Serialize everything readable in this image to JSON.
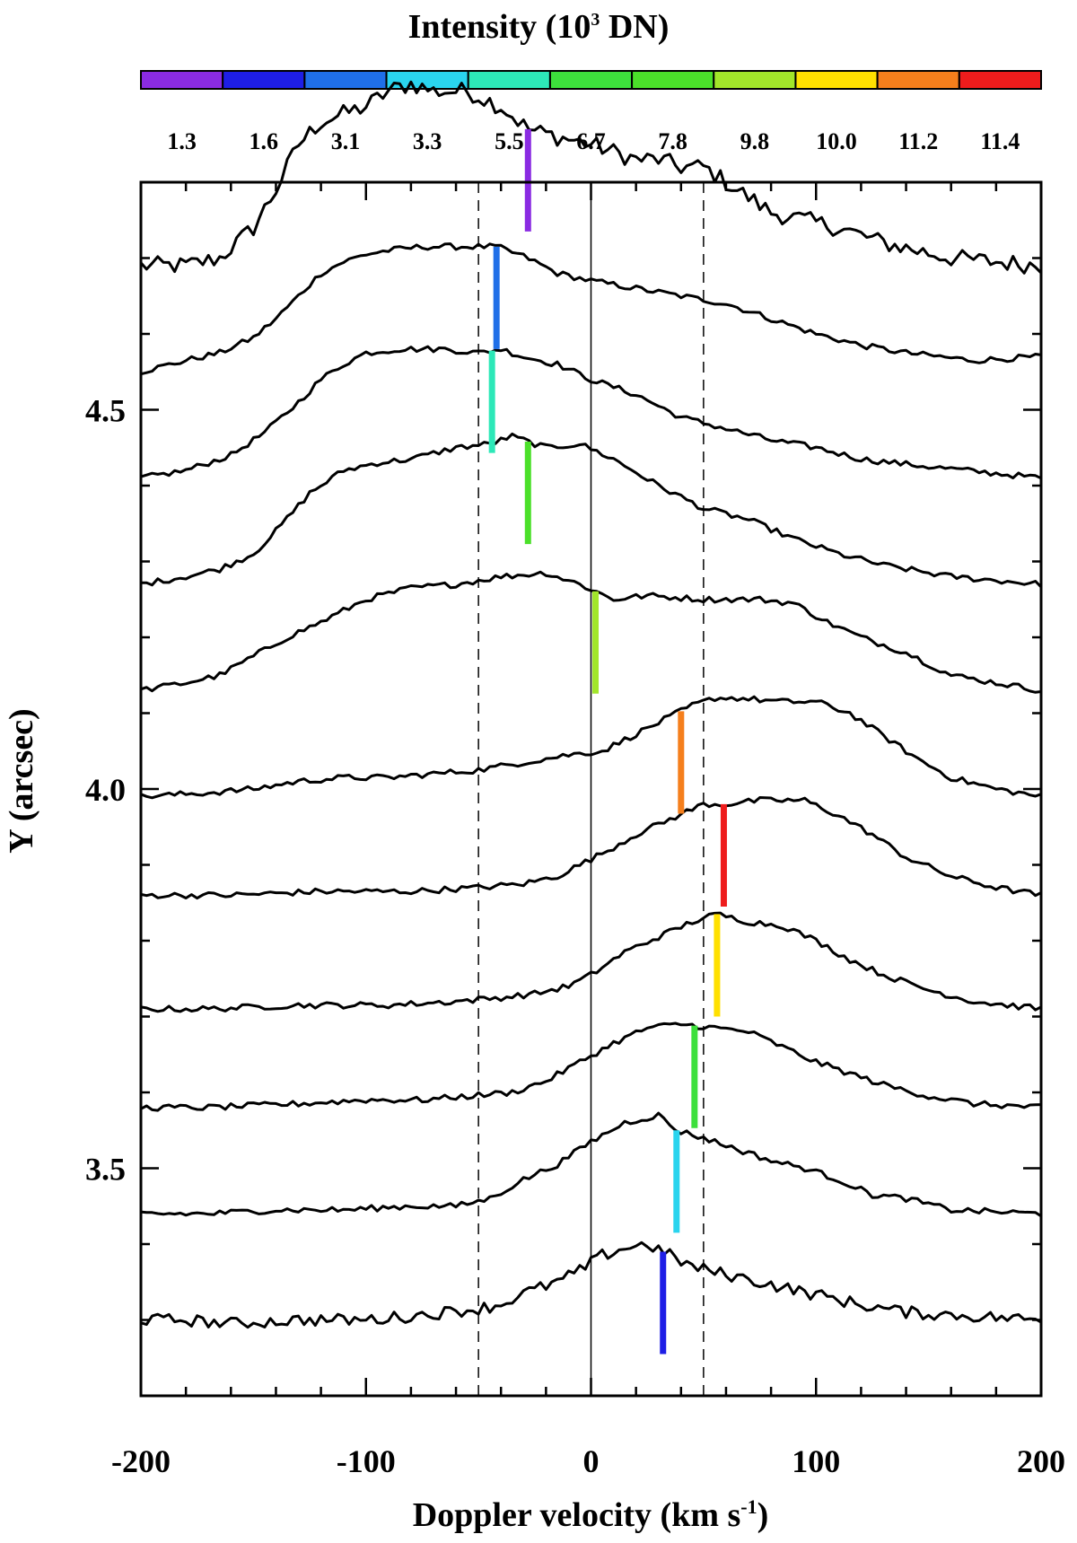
{
  "chart_data": {
    "type": "line",
    "title": "Intensity (10",
    "title_sup": "3",
    "title_end": " DN)",
    "xlabel": "Doppler velocity (km s",
    "xlabel_sup": "-1",
    "xlabel_end": ")",
    "ylabel": "Y (arcsec)",
    "xlim": [
      -200,
      200
    ],
    "ylim": [
      3.2,
      4.8
    ],
    "xticks": [
      -200,
      -100,
      0,
      100,
      200
    ],
    "xtick_labels": [
      "-200",
      "-100",
      "0",
      "100",
      "200"
    ],
    "yticks": [
      3.5,
      4.0,
      4.5
    ],
    "ytick_labels": [
      "3.5",
      "4.0",
      "4.5"
    ],
    "vlines": [
      {
        "x": -50,
        "style": "dashed"
      },
      {
        "x": 0,
        "style": "solid"
      },
      {
        "x": 50,
        "style": "dashed"
      }
    ],
    "colorbar": {
      "colors": [
        "#8a2be2",
        "#1e1ee6",
        "#1f6fe8",
        "#2ad4ee",
        "#2de8b8",
        "#3de03c",
        "#4be02a",
        "#a2e62a",
        "#ffe000",
        "#f57f1c",
        "#ee1c1c"
      ],
      "labels": [
        "1.3",
        "1.6",
        "3.1",
        "3.3",
        "5.5",
        "6.7",
        "7.8",
        "9.8",
        "10.0",
        "11.2",
        "11.4"
      ]
    },
    "grid": false,
    "legend": "none",
    "series": [
      {
        "y_base": 4.69,
        "peak_x": -28,
        "marker_color": "#8a2be2",
        "profile": [
          [
            -200,
            0
          ],
          [
            -180,
            0
          ],
          [
            -165,
            0.01
          ],
          [
            -150,
            0.05
          ],
          [
            -140,
            0.1
          ],
          [
            -130,
            0.16
          ],
          [
            -120,
            0.19
          ],
          [
            -110,
            0.2
          ],
          [
            -100,
            0.21
          ],
          [
            -90,
            0.23
          ],
          [
            -80,
            0.24
          ],
          [
            -70,
            0.23
          ],
          [
            -55,
            0.23
          ],
          [
            -40,
            0.21
          ],
          [
            -28,
            0.18
          ],
          [
            -15,
            0.17
          ],
          [
            0,
            0.16
          ],
          [
            10,
            0.15
          ],
          [
            20,
            0.14
          ],
          [
            30,
            0.14
          ],
          [
            40,
            0.13
          ],
          [
            50,
            0.13
          ],
          [
            60,
            0.11
          ],
          [
            70,
            0.09
          ],
          [
            80,
            0.07
          ],
          [
            95,
            0.06
          ],
          [
            110,
            0.05
          ],
          [
            130,
            0.03
          ],
          [
            160,
            0.01
          ],
          [
            200,
            0
          ]
        ]
      },
      {
        "y_base": 4.55,
        "peak_x": -42,
        "marker_color": "#1f6fe8",
        "profile": [
          [
            -200,
            0
          ],
          [
            -180,
            0.015
          ],
          [
            -165,
            0.025
          ],
          [
            -150,
            0.045
          ],
          [
            -140,
            0.07
          ],
          [
            -130,
            0.1
          ],
          [
            -120,
            0.13
          ],
          [
            -110,
            0.145
          ],
          [
            -100,
            0.155
          ],
          [
            -90,
            0.16
          ],
          [
            -75,
            0.165
          ],
          [
            -60,
            0.165
          ],
          [
            -42,
            0.165
          ],
          [
            -28,
            0.15
          ],
          [
            -15,
            0.13
          ],
          [
            0,
            0.12
          ],
          [
            20,
            0.11
          ],
          [
            40,
            0.1
          ],
          [
            60,
            0.09
          ],
          [
            80,
            0.07
          ],
          [
            100,
            0.05
          ],
          [
            120,
            0.035
          ],
          [
            140,
            0.025
          ],
          [
            170,
            0.015
          ],
          [
            200,
            0.02
          ]
        ]
      },
      {
        "y_base": 4.41,
        "peak_x": -44,
        "marker_color": "#2de8b8",
        "profile": [
          [
            -200,
            0
          ],
          [
            -180,
            0.01
          ],
          [
            -160,
            0.03
          ],
          [
            -145,
            0.06
          ],
          [
            -130,
            0.1
          ],
          [
            -120,
            0.13
          ],
          [
            -110,
            0.15
          ],
          [
            -100,
            0.165
          ],
          [
            -85,
            0.17
          ],
          [
            -65,
            0.17
          ],
          [
            -50,
            0.165
          ],
          [
            -40,
            0.17
          ],
          [
            -30,
            0.16
          ],
          [
            -15,
            0.15
          ],
          [
            0,
            0.13
          ],
          [
            20,
            0.11
          ],
          [
            40,
            0.08
          ],
          [
            60,
            0.065
          ],
          [
            80,
            0.05
          ],
          [
            100,
            0.04
          ],
          [
            120,
            0.025
          ],
          [
            150,
            0.015
          ],
          [
            200,
            0
          ]
        ]
      },
      {
        "y_base": 4.27,
        "peak_x": -28,
        "marker_color": "#4be02a",
        "profile": [
          [
            -200,
            0
          ],
          [
            -180,
            0.01
          ],
          [
            -165,
            0.02
          ],
          [
            -150,
            0.04
          ],
          [
            -140,
            0.07
          ],
          [
            -125,
            0.12
          ],
          [
            -110,
            0.15
          ],
          [
            -95,
            0.16
          ],
          [
            -80,
            0.165
          ],
          [
            -60,
            0.18
          ],
          [
            -45,
            0.185
          ],
          [
            -35,
            0.195
          ],
          [
            -20,
            0.18
          ],
          [
            -5,
            0.185
          ],
          [
            10,
            0.165
          ],
          [
            30,
            0.13
          ],
          [
            50,
            0.1
          ],
          [
            70,
            0.085
          ],
          [
            90,
            0.06
          ],
          [
            110,
            0.04
          ],
          [
            130,
            0.025
          ],
          [
            160,
            0.01
          ],
          [
            200,
            0
          ]
        ]
      },
      {
        "y_base": 4.13,
        "peak_x": 2,
        "marker_color": "#a2e62a",
        "profile": [
          [
            -200,
            0
          ],
          [
            -180,
            0.01
          ],
          [
            -165,
            0.02
          ],
          [
            -150,
            0.045
          ],
          [
            -135,
            0.07
          ],
          [
            -120,
            0.09
          ],
          [
            -100,
            0.12
          ],
          [
            -80,
            0.135
          ],
          [
            -60,
            0.14
          ],
          [
            -40,
            0.15
          ],
          [
            -20,
            0.155
          ],
          [
            -5,
            0.14
          ],
          [
            10,
            0.12
          ],
          [
            25,
            0.125
          ],
          [
            50,
            0.12
          ],
          [
            75,
            0.12
          ],
          [
            90,
            0.115
          ],
          [
            105,
            0.09
          ],
          [
            120,
            0.07
          ],
          [
            140,
            0.05
          ],
          [
            160,
            0.02
          ],
          [
            180,
            0.01
          ],
          [
            200,
            0
          ]
        ]
      },
      {
        "y_base": 3.99,
        "peak_x": 40,
        "marker_color": "#f57f1c",
        "profile": [
          [
            -200,
            0
          ],
          [
            -170,
            0.005
          ],
          [
            -150,
            0.01
          ],
          [
            -130,
            0.02
          ],
          [
            -110,
            0.025
          ],
          [
            -90,
            0.025
          ],
          [
            -70,
            0.03
          ],
          [
            -50,
            0.035
          ],
          [
            -30,
            0.045
          ],
          [
            -10,
            0.055
          ],
          [
            5,
            0.06
          ],
          [
            15,
            0.075
          ],
          [
            25,
            0.09
          ],
          [
            35,
            0.105
          ],
          [
            45,
            0.12
          ],
          [
            55,
            0.13
          ],
          [
            65,
            0.13
          ],
          [
            85,
            0.125
          ],
          [
            100,
            0.125
          ],
          [
            115,
            0.11
          ],
          [
            130,
            0.08
          ],
          [
            145,
            0.05
          ],
          [
            160,
            0.025
          ],
          [
            180,
            0.01
          ],
          [
            200,
            0
          ]
        ]
      },
      {
        "y_base": 3.86,
        "peak_x": 59,
        "marker_color": "#ee1c1c",
        "profile": [
          [
            -200,
            0
          ],
          [
            -160,
            0
          ],
          [
            -120,
            0.005
          ],
          [
            -80,
            0.005
          ],
          [
            -50,
            0.01
          ],
          [
            -30,
            0.015
          ],
          [
            -15,
            0.025
          ],
          [
            -5,
            0.04
          ],
          [
            5,
            0.055
          ],
          [
            20,
            0.08
          ],
          [
            35,
            0.1
          ],
          [
            50,
            0.12
          ],
          [
            60,
            0.12
          ],
          [
            75,
            0.125
          ],
          [
            95,
            0.125
          ],
          [
            110,
            0.105
          ],
          [
            125,
            0.08
          ],
          [
            140,
            0.05
          ],
          [
            160,
            0.025
          ],
          [
            180,
            0.01
          ],
          [
            200,
            0
          ]
        ]
      },
      {
        "y_base": 3.71,
        "peak_x": 56,
        "marker_color": "#ffe000",
        "profile": [
          [
            -200,
            0
          ],
          [
            -170,
            0
          ],
          [
            -130,
            0.005
          ],
          [
            -90,
            0.005
          ],
          [
            -60,
            0.01
          ],
          [
            -40,
            0.015
          ],
          [
            -25,
            0.02
          ],
          [
            -10,
            0.03
          ],
          [
            0,
            0.045
          ],
          [
            15,
            0.075
          ],
          [
            30,
            0.095
          ],
          [
            45,
            0.115
          ],
          [
            56,
            0.125
          ],
          [
            70,
            0.115
          ],
          [
            85,
            0.11
          ],
          [
            100,
            0.09
          ],
          [
            115,
            0.065
          ],
          [
            130,
            0.045
          ],
          [
            150,
            0.025
          ],
          [
            170,
            0.01
          ],
          [
            200,
            0
          ]
        ]
      },
      {
        "y_base": 3.58,
        "peak_x": 46,
        "marker_color": "#3de03c",
        "profile": [
          [
            -200,
            0
          ],
          [
            -170,
            0
          ],
          [
            -130,
            0.005
          ],
          [
            -100,
            0.01
          ],
          [
            -75,
            0.01
          ],
          [
            -55,
            0.015
          ],
          [
            -35,
            0.02
          ],
          [
            -20,
            0.035
          ],
          [
            -5,
            0.06
          ],
          [
            10,
            0.085
          ],
          [
            25,
            0.105
          ],
          [
            40,
            0.11
          ],
          [
            55,
            0.105
          ],
          [
            70,
            0.1
          ],
          [
            85,
            0.08
          ],
          [
            100,
            0.06
          ],
          [
            115,
            0.045
          ],
          [
            130,
            0.03
          ],
          [
            150,
            0.015
          ],
          [
            170,
            0.005
          ],
          [
            200,
            0
          ]
        ]
      },
      {
        "y_base": 3.44,
        "peak_x": 38,
        "marker_color": "#2ad4ee",
        "profile": [
          [
            -200,
            0
          ],
          [
            -170,
            0
          ],
          [
            -140,
            0.005
          ],
          [
            -110,
            0.005
          ],
          [
            -80,
            0.01
          ],
          [
            -60,
            0.01
          ],
          [
            -45,
            0.02
          ],
          [
            -30,
            0.045
          ],
          [
            -15,
            0.065
          ],
          [
            0,
            0.095
          ],
          [
            15,
            0.12
          ],
          [
            30,
            0.13
          ],
          [
            38,
            0.11
          ],
          [
            50,
            0.1
          ],
          [
            65,
            0.085
          ],
          [
            80,
            0.07
          ],
          [
            95,
            0.06
          ],
          [
            110,
            0.045
          ],
          [
            125,
            0.025
          ],
          [
            140,
            0.02
          ],
          [
            160,
            0.005
          ],
          [
            200,
            0
          ]
        ]
      },
      {
        "y_base": 3.3,
        "peak_x": 32,
        "marker_color": "#1e1ee6",
        "profile": [
          [
            -200,
            0
          ],
          [
            -180,
            0
          ],
          [
            -160,
            -0.005
          ],
          [
            -130,
            0
          ],
          [
            -100,
            0
          ],
          [
            -80,
            0.005
          ],
          [
            -65,
            0.01
          ],
          [
            -50,
            0.015
          ],
          [
            -40,
            0.02
          ],
          [
            -30,
            0.035
          ],
          [
            -15,
            0.05
          ],
          [
            -5,
            0.065
          ],
          [
            5,
            0.085
          ],
          [
            15,
            0.095
          ],
          [
            25,
            0.1
          ],
          [
            32,
            0.09
          ],
          [
            45,
            0.07
          ],
          [
            60,
            0.06
          ],
          [
            75,
            0.05
          ],
          [
            90,
            0.04
          ],
          [
            105,
            0.03
          ],
          [
            120,
            0.02
          ],
          [
            140,
            0.01
          ],
          [
            170,
            0.005
          ],
          [
            200,
            0
          ]
        ]
      }
    ]
  }
}
